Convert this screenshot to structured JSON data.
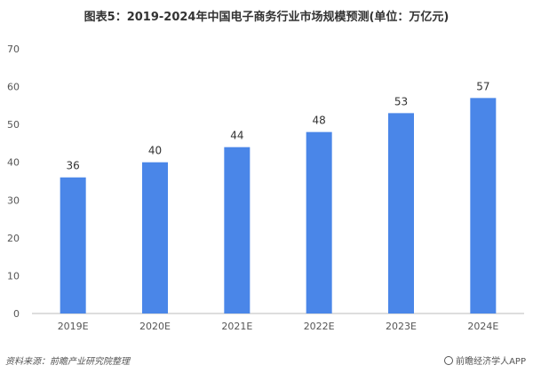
{
  "chart_data": {
    "type": "bar",
    "title": "图表5：2019-2024年中国电子商务行业市场规模预测(单位：万亿元)",
    "categories": [
      "2019E",
      "2020E",
      "2021E",
      "2022E",
      "2023E",
      "2024E"
    ],
    "values": [
      36,
      40,
      44,
      48,
      53,
      57
    ],
    "ylim": [
      0,
      70
    ],
    "yticks": [
      0,
      10,
      20,
      30,
      40,
      50,
      60,
      70
    ],
    "grid": false,
    "legend": "none",
    "bar_color": "#4a86e8"
  },
  "footer": {
    "source": "资料来源：前瞻产业研究院整理",
    "brand": "@前瞻经济学人APP"
  }
}
